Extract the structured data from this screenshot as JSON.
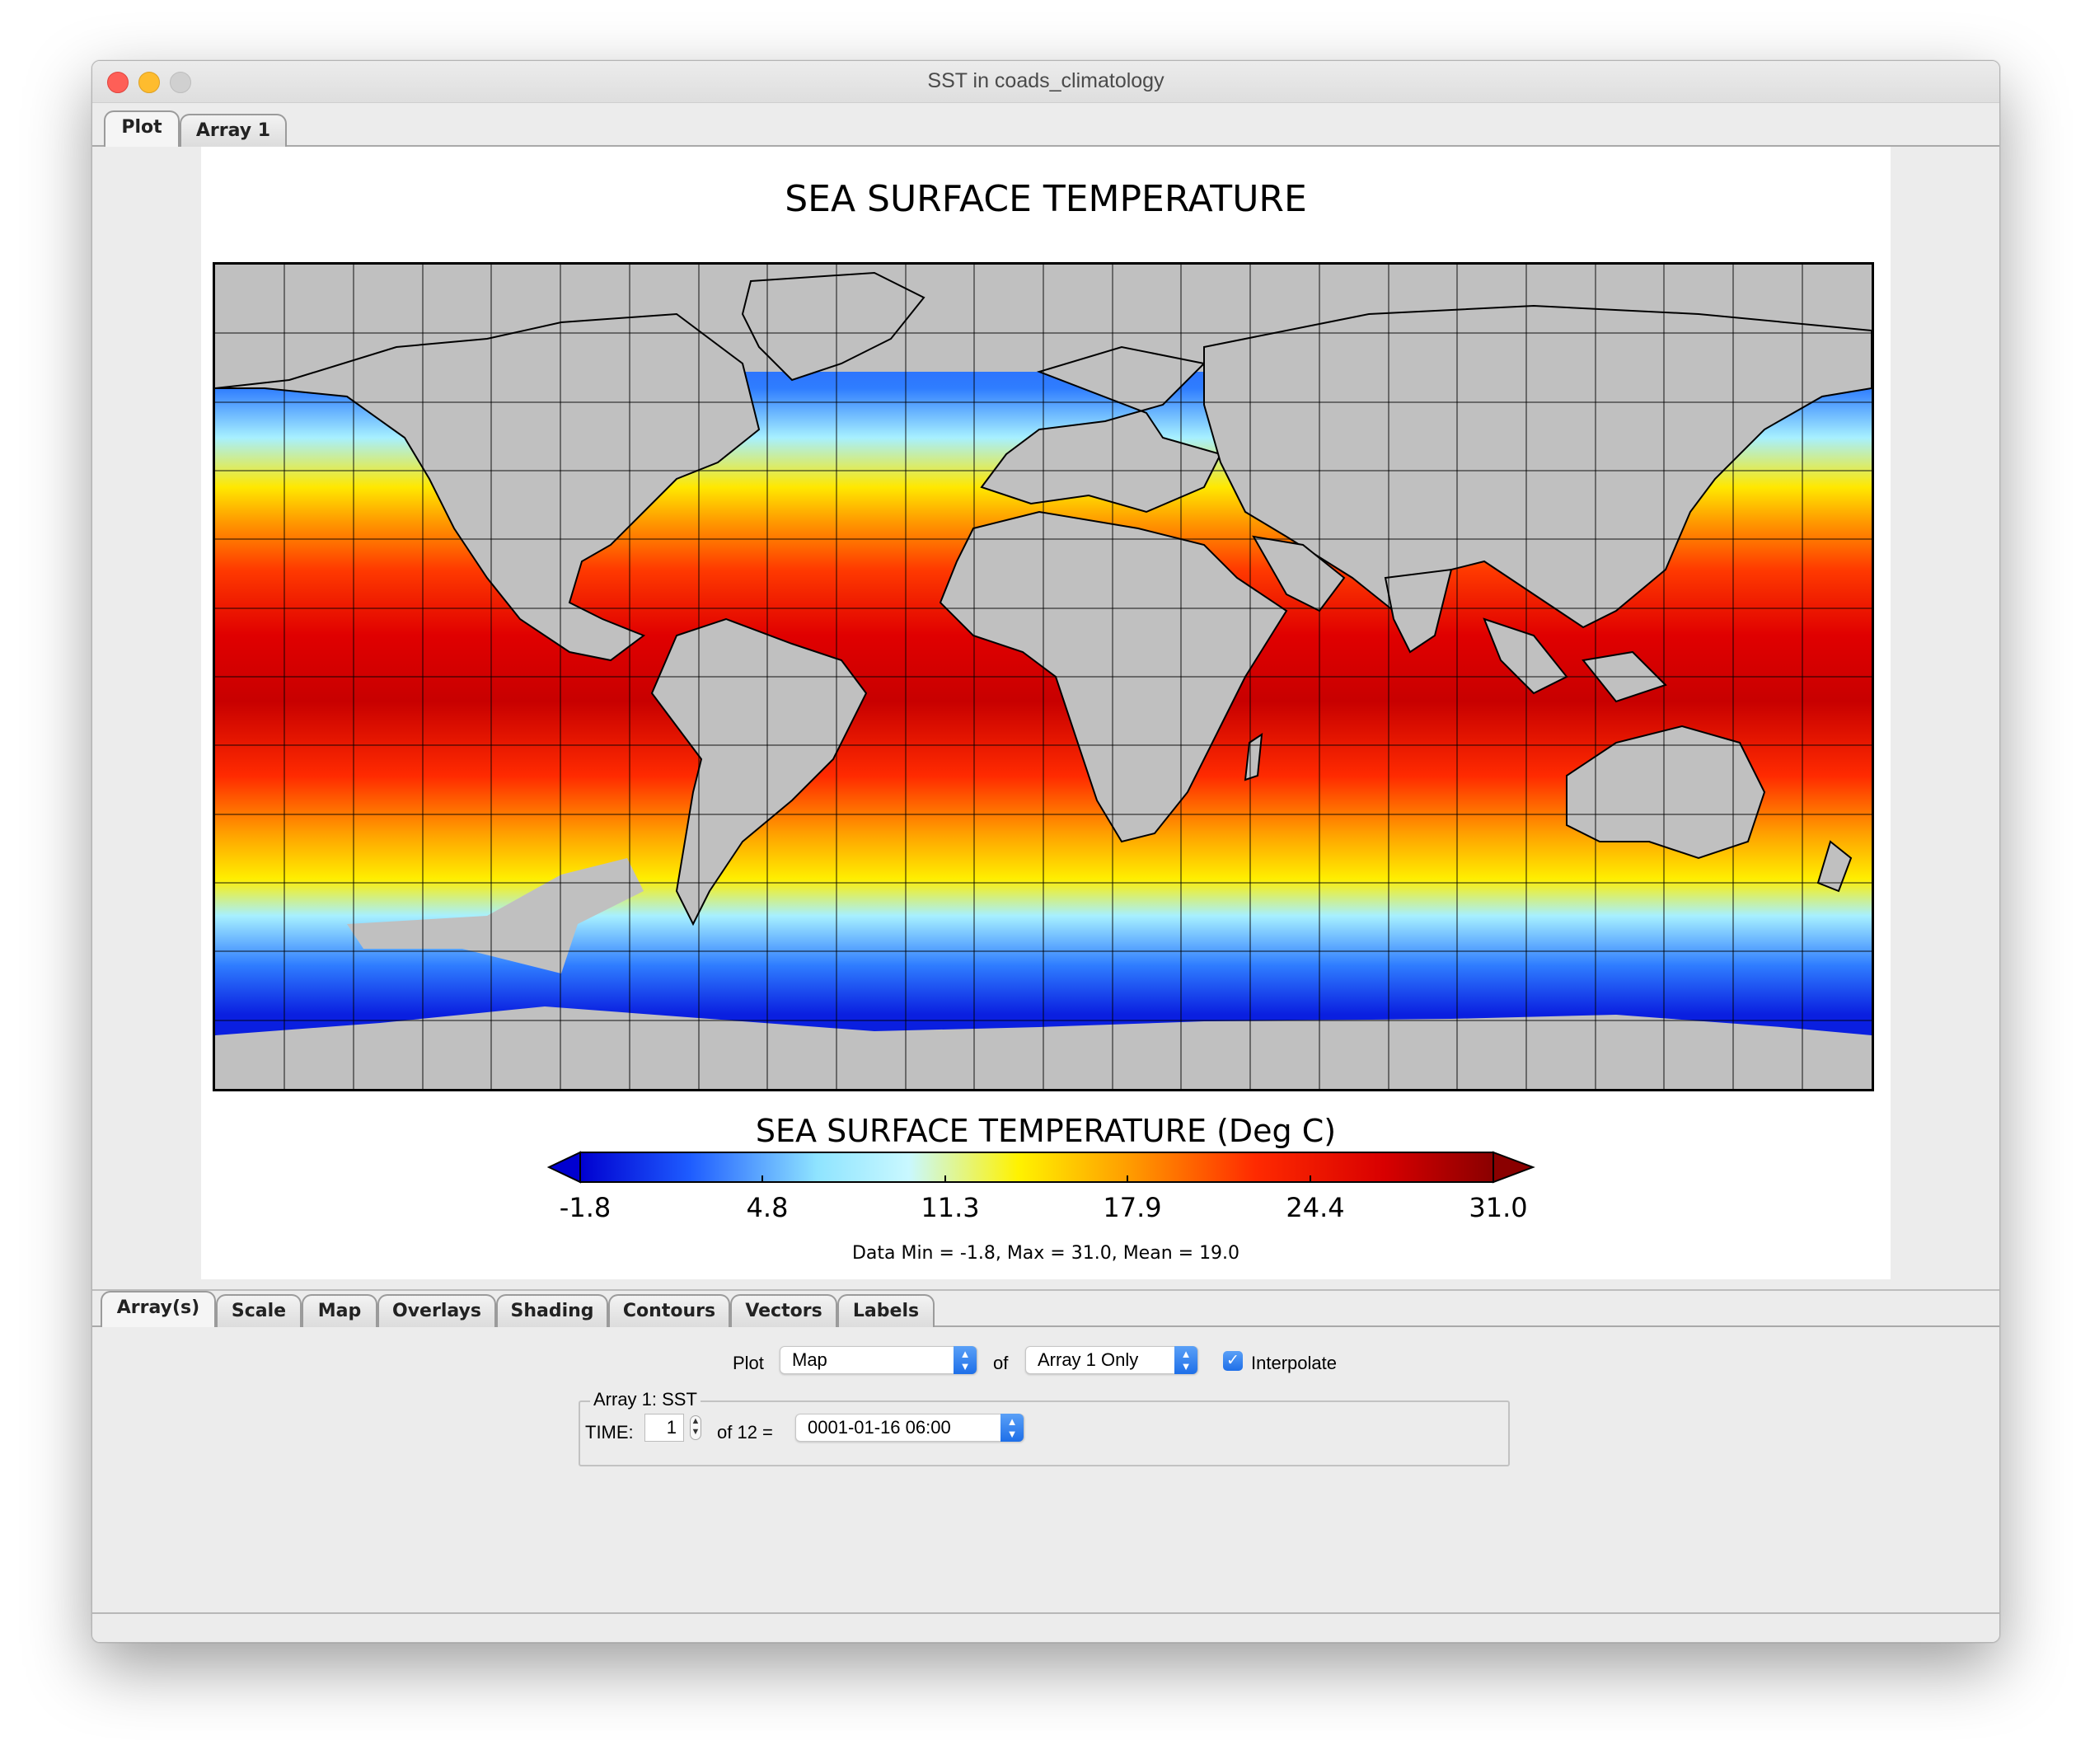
{
  "window": {
    "title": "SST in coads_climatology"
  },
  "top_tabs": [
    "Plot",
    "Array 1"
  ],
  "plot": {
    "title": "SEA SURFACE TEMPERATURE",
    "colorbar_title": "SEA SURFACE TEMPERATURE (Deg C)",
    "colorbar_ticks": [
      "-1.8",
      "4.8",
      "11.3",
      "17.9",
      "24.4",
      "31.0"
    ],
    "stats": "Data Min = -1.8, Max = 31.0, Mean = 19.0",
    "colors": {
      "land": "#c0c0c0",
      "cold": "#0a1fe0",
      "cool": "#a7f0ff",
      "mid": "#ffee00",
      "warm": "#ff2a00",
      "hot": "#8a0000"
    }
  },
  "bottom_tabs": [
    "Array(s)",
    "Scale",
    "Map",
    "Overlays",
    "Shading",
    "Contours",
    "Vectors",
    "Labels"
  ],
  "controls": {
    "plot_label": "Plot",
    "plot_type": "Map",
    "of_label": "of",
    "array_select": "Array 1 Only",
    "interpolate_label": "Interpolate",
    "interpolate_checked": true,
    "group_title": "Array 1: SST",
    "time_label": "TIME:",
    "time_index": "1",
    "of_total": "of 12 =",
    "time_value": "0001-01-16 06:00"
  }
}
